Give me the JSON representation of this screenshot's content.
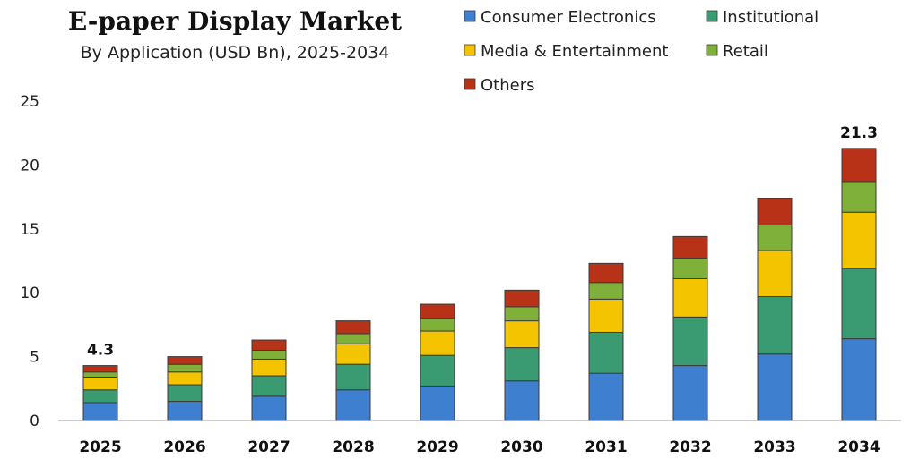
{
  "chart_data": {
    "type": "bar",
    "stacked": true,
    "title": "E-paper Display Market",
    "subtitle": "By Application (USD Bn), 2025-2034",
    "categories": [
      "2025",
      "2026",
      "2027",
      "2028",
      "2029",
      "2030",
      "2031",
      "2032",
      "2033",
      "2034"
    ],
    "series": [
      {
        "name": "Consumer Electronics",
        "color": "#3f7fd0",
        "values": [
          1.4,
          1.5,
          1.9,
          2.4,
          2.7,
          3.1,
          3.7,
          4.3,
          5.2,
          6.4
        ]
      },
      {
        "name": "Institutional",
        "color": "#3a9a72",
        "values": [
          1.0,
          1.3,
          1.6,
          2.0,
          2.4,
          2.6,
          3.2,
          3.8,
          4.5,
          5.5
        ]
      },
      {
        "name": "Media & Entertainment",
        "color": "#f5c400",
        "values": [
          1.0,
          1.0,
          1.3,
          1.6,
          1.9,
          2.1,
          2.6,
          3.0,
          3.6,
          4.4
        ]
      },
      {
        "name": "Retail",
        "color": "#7fb03a",
        "values": [
          0.4,
          0.6,
          0.7,
          0.8,
          1.0,
          1.1,
          1.3,
          1.6,
          2.0,
          2.4
        ]
      },
      {
        "name": "Others",
        "color": "#b83218",
        "values": [
          0.5,
          0.6,
          0.8,
          1.0,
          1.1,
          1.3,
          1.5,
          1.7,
          2.1,
          2.6
        ]
      }
    ],
    "ylim": [
      0,
      25
    ],
    "yticks": [
      "0",
      "5",
      "10",
      "15",
      "20",
      "25"
    ],
    "data_labels": [
      {
        "category": "2025",
        "text": "4.3"
      },
      {
        "category": "2034",
        "text": "21.3"
      }
    ],
    "legend_position": "top-right",
    "grid": false
  }
}
